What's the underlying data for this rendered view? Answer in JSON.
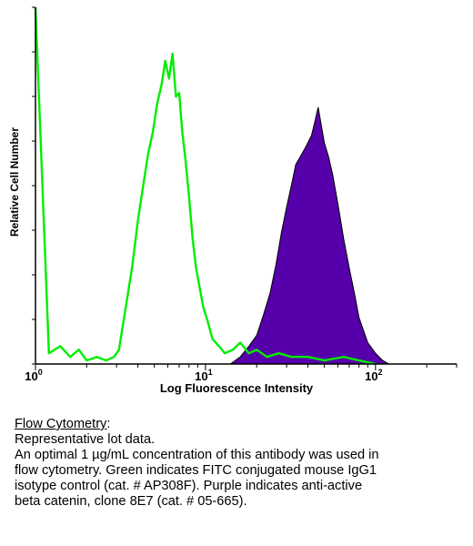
{
  "chart_data": {
    "type": "area",
    "xlabel": "Log Fluorescence Intensity",
    "ylabel": "Relative Cell Number",
    "x_scale": "log",
    "xlim": [
      1,
      300
    ],
    "ylim": [
      0,
      100
    ],
    "x_ticks": [
      {
        "value": 1,
        "base": "10",
        "exp": "0"
      },
      {
        "value": 10,
        "base": "10",
        "exp": "1"
      },
      {
        "value": 100,
        "base": "10",
        "exp": "2"
      }
    ],
    "grid": false,
    "series": [
      {
        "color": "#00ee00",
        "filled": false,
        "x": [
          1.0,
          1.2,
          1.4,
          1.6,
          1.8,
          2.0,
          2.3,
          2.6,
          2.9,
          3.1,
          3.4,
          3.7,
          4.0,
          4.3,
          4.6,
          4.9,
          5.2,
          5.5,
          5.8,
          6.1,
          6.4,
          6.7,
          7.0,
          7.3,
          7.6,
          8.0,
          8.4,
          8.8,
          9.2,
          9.7,
          10.3,
          11.0,
          12.0,
          13.0,
          14.5,
          16.0,
          18.0,
          20.0,
          23.0,
          27.0,
          32.0,
          40.0,
          50.0,
          65.0,
          80.0,
          100.0
        ],
        "y": [
          100,
          3,
          5,
          2,
          4,
          1,
          2,
          1,
          2,
          4,
          16,
          27,
          40,
          50,
          59,
          65,
          73,
          78,
          85,
          80,
          87,
          75,
          76,
          65,
          58,
          47,
          35,
          27,
          22,
          16,
          12,
          7,
          5,
          3,
          4,
          6,
          3,
          4,
          2,
          3,
          2,
          2,
          1,
          2,
          1,
          0
        ]
      },
      {
        "color": "#5500aa",
        "filled": true,
        "x": [
          14.0,
          16.0,
          18.0,
          20.0,
          22.0,
          24.0,
          26.0,
          28.0,
          30.0,
          32.0,
          34.0,
          36.0,
          38.0,
          40.0,
          42.0,
          44.0,
          46.0,
          48.0,
          50.0,
          53.0,
          56.0,
          60.0,
          65.0,
          70.0,
          75.0,
          80.0,
          90.0,
          100.0,
          110.0,
          120.0
        ],
        "y": [
          0,
          2,
          5,
          8,
          14,
          20,
          28,
          37,
          44,
          50,
          56,
          58,
          60,
          62,
          64,
          68,
          72,
          67,
          62,
          58,
          53,
          45,
          35,
          27,
          20,
          13,
          6,
          3,
          1,
          0
        ]
      }
    ]
  },
  "caption": {
    "heading": "Flow Cytometry",
    "colon": ":",
    "lines": [
      "Representative lot data.",
      "An optimal 1 µg/mL concentration of this antibody was used in",
      "flow cytometry. Green indicates FITC conjugated mouse IgG1",
      "isotype control (cat. # AP308F). Purple indicates anti-active",
      "beta catenin, clone 8E7 (cat. # 05-665)."
    ]
  }
}
